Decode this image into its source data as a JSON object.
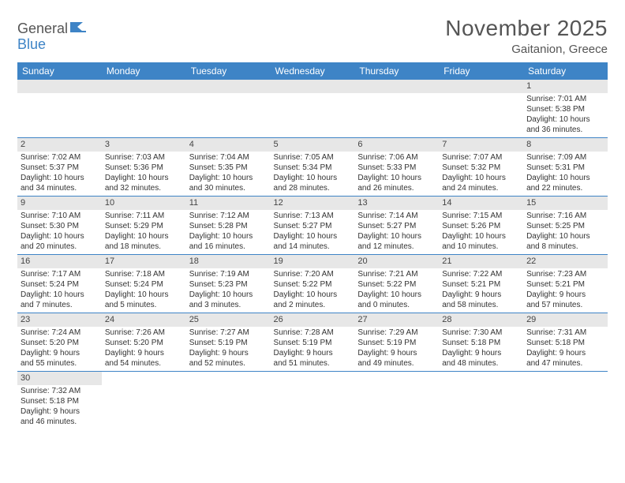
{
  "logo": {
    "general": "General",
    "blue": "Blue"
  },
  "title": "November 2025",
  "location": "Gaitanion, Greece",
  "colors": {
    "header_bg": "#3e84c6",
    "header_text": "#ffffff",
    "daybar_bg": "#e7e7e7",
    "text": "#333333",
    "title_text": "#555555",
    "row_border": "#3e84c6"
  },
  "day_names": [
    "Sunday",
    "Monday",
    "Tuesday",
    "Wednesday",
    "Thursday",
    "Friday",
    "Saturday"
  ],
  "weeks": [
    [
      null,
      null,
      null,
      null,
      null,
      null,
      {
        "d": "1",
        "sr": "Sunrise: 7:01 AM",
        "ss": "Sunset: 5:38 PM",
        "dl1": "Daylight: 10 hours",
        "dl2": "and 36 minutes."
      }
    ],
    [
      {
        "d": "2",
        "sr": "Sunrise: 7:02 AM",
        "ss": "Sunset: 5:37 PM",
        "dl1": "Daylight: 10 hours",
        "dl2": "and 34 minutes."
      },
      {
        "d": "3",
        "sr": "Sunrise: 7:03 AM",
        "ss": "Sunset: 5:36 PM",
        "dl1": "Daylight: 10 hours",
        "dl2": "and 32 minutes."
      },
      {
        "d": "4",
        "sr": "Sunrise: 7:04 AM",
        "ss": "Sunset: 5:35 PM",
        "dl1": "Daylight: 10 hours",
        "dl2": "and 30 minutes."
      },
      {
        "d": "5",
        "sr": "Sunrise: 7:05 AM",
        "ss": "Sunset: 5:34 PM",
        "dl1": "Daylight: 10 hours",
        "dl2": "and 28 minutes."
      },
      {
        "d": "6",
        "sr": "Sunrise: 7:06 AM",
        "ss": "Sunset: 5:33 PM",
        "dl1": "Daylight: 10 hours",
        "dl2": "and 26 minutes."
      },
      {
        "d": "7",
        "sr": "Sunrise: 7:07 AM",
        "ss": "Sunset: 5:32 PM",
        "dl1": "Daylight: 10 hours",
        "dl2": "and 24 minutes."
      },
      {
        "d": "8",
        "sr": "Sunrise: 7:09 AM",
        "ss": "Sunset: 5:31 PM",
        "dl1": "Daylight: 10 hours",
        "dl2": "and 22 minutes."
      }
    ],
    [
      {
        "d": "9",
        "sr": "Sunrise: 7:10 AM",
        "ss": "Sunset: 5:30 PM",
        "dl1": "Daylight: 10 hours",
        "dl2": "and 20 minutes."
      },
      {
        "d": "10",
        "sr": "Sunrise: 7:11 AM",
        "ss": "Sunset: 5:29 PM",
        "dl1": "Daylight: 10 hours",
        "dl2": "and 18 minutes."
      },
      {
        "d": "11",
        "sr": "Sunrise: 7:12 AM",
        "ss": "Sunset: 5:28 PM",
        "dl1": "Daylight: 10 hours",
        "dl2": "and 16 minutes."
      },
      {
        "d": "12",
        "sr": "Sunrise: 7:13 AM",
        "ss": "Sunset: 5:27 PM",
        "dl1": "Daylight: 10 hours",
        "dl2": "and 14 minutes."
      },
      {
        "d": "13",
        "sr": "Sunrise: 7:14 AM",
        "ss": "Sunset: 5:27 PM",
        "dl1": "Daylight: 10 hours",
        "dl2": "and 12 minutes."
      },
      {
        "d": "14",
        "sr": "Sunrise: 7:15 AM",
        "ss": "Sunset: 5:26 PM",
        "dl1": "Daylight: 10 hours",
        "dl2": "and 10 minutes."
      },
      {
        "d": "15",
        "sr": "Sunrise: 7:16 AM",
        "ss": "Sunset: 5:25 PM",
        "dl1": "Daylight: 10 hours",
        "dl2": "and 8 minutes."
      }
    ],
    [
      {
        "d": "16",
        "sr": "Sunrise: 7:17 AM",
        "ss": "Sunset: 5:24 PM",
        "dl1": "Daylight: 10 hours",
        "dl2": "and 7 minutes."
      },
      {
        "d": "17",
        "sr": "Sunrise: 7:18 AM",
        "ss": "Sunset: 5:24 PM",
        "dl1": "Daylight: 10 hours",
        "dl2": "and 5 minutes."
      },
      {
        "d": "18",
        "sr": "Sunrise: 7:19 AM",
        "ss": "Sunset: 5:23 PM",
        "dl1": "Daylight: 10 hours",
        "dl2": "and 3 minutes."
      },
      {
        "d": "19",
        "sr": "Sunrise: 7:20 AM",
        "ss": "Sunset: 5:22 PM",
        "dl1": "Daylight: 10 hours",
        "dl2": "and 2 minutes."
      },
      {
        "d": "20",
        "sr": "Sunrise: 7:21 AM",
        "ss": "Sunset: 5:22 PM",
        "dl1": "Daylight: 10 hours",
        "dl2": "and 0 minutes."
      },
      {
        "d": "21",
        "sr": "Sunrise: 7:22 AM",
        "ss": "Sunset: 5:21 PM",
        "dl1": "Daylight: 9 hours",
        "dl2": "and 58 minutes."
      },
      {
        "d": "22",
        "sr": "Sunrise: 7:23 AM",
        "ss": "Sunset: 5:21 PM",
        "dl1": "Daylight: 9 hours",
        "dl2": "and 57 minutes."
      }
    ],
    [
      {
        "d": "23",
        "sr": "Sunrise: 7:24 AM",
        "ss": "Sunset: 5:20 PM",
        "dl1": "Daylight: 9 hours",
        "dl2": "and 55 minutes."
      },
      {
        "d": "24",
        "sr": "Sunrise: 7:26 AM",
        "ss": "Sunset: 5:20 PM",
        "dl1": "Daylight: 9 hours",
        "dl2": "and 54 minutes."
      },
      {
        "d": "25",
        "sr": "Sunrise: 7:27 AM",
        "ss": "Sunset: 5:19 PM",
        "dl1": "Daylight: 9 hours",
        "dl2": "and 52 minutes."
      },
      {
        "d": "26",
        "sr": "Sunrise: 7:28 AM",
        "ss": "Sunset: 5:19 PM",
        "dl1": "Daylight: 9 hours",
        "dl2": "and 51 minutes."
      },
      {
        "d": "27",
        "sr": "Sunrise: 7:29 AM",
        "ss": "Sunset: 5:19 PM",
        "dl1": "Daylight: 9 hours",
        "dl2": "and 49 minutes."
      },
      {
        "d": "28",
        "sr": "Sunrise: 7:30 AM",
        "ss": "Sunset: 5:18 PM",
        "dl1": "Daylight: 9 hours",
        "dl2": "and 48 minutes."
      },
      {
        "d": "29",
        "sr": "Sunrise: 7:31 AM",
        "ss": "Sunset: 5:18 PM",
        "dl1": "Daylight: 9 hours",
        "dl2": "and 47 minutes."
      }
    ],
    [
      {
        "d": "30",
        "sr": "Sunrise: 7:32 AM",
        "ss": "Sunset: 5:18 PM",
        "dl1": "Daylight: 9 hours",
        "dl2": "and 46 minutes."
      },
      null,
      null,
      null,
      null,
      null,
      null
    ]
  ]
}
